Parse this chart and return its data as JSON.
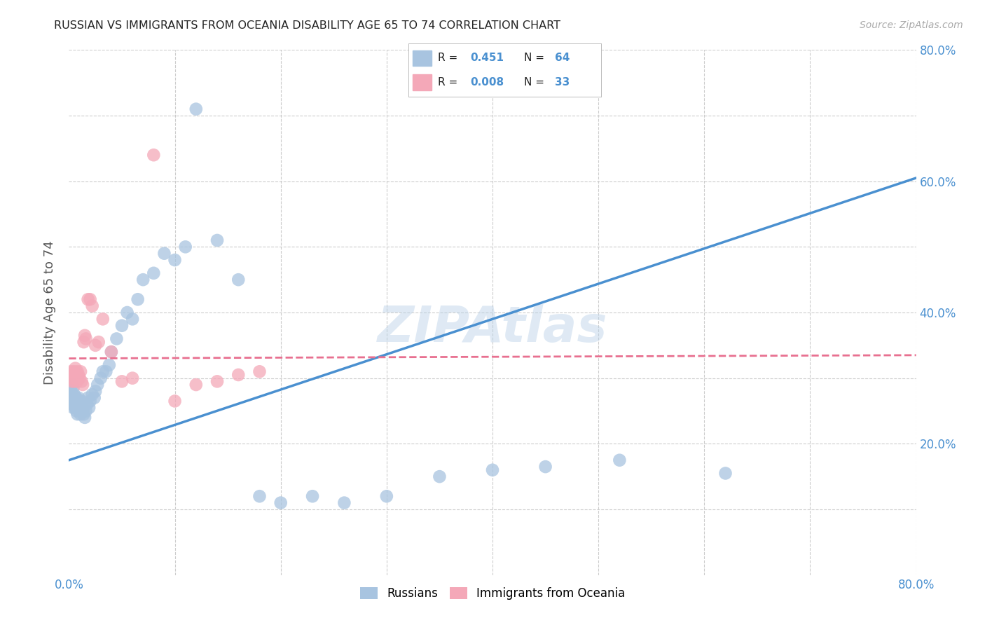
{
  "title": "RUSSIAN VS IMMIGRANTS FROM OCEANIA DISABILITY AGE 65 TO 74 CORRELATION CHART",
  "source": "Source: ZipAtlas.com",
  "ylabel": "Disability Age 65 to 74",
  "xlim": [
    0.0,
    0.8
  ],
  "ylim": [
    0.0,
    0.8
  ],
  "russian_R": 0.451,
  "russian_N": 64,
  "oceania_R": 0.008,
  "oceania_N": 33,
  "russian_color": "#a8c4e0",
  "oceania_color": "#f4a8b8",
  "russian_line_color": "#4a90d0",
  "oceania_line_color": "#e87090",
  "background_color": "#ffffff",
  "grid_color": "#cccccc",
  "russians_x": [
    0.001,
    0.002,
    0.002,
    0.003,
    0.003,
    0.003,
    0.004,
    0.004,
    0.004,
    0.005,
    0.005,
    0.006,
    0.006,
    0.007,
    0.007,
    0.008,
    0.008,
    0.009,
    0.009,
    0.01,
    0.01,
    0.011,
    0.012,
    0.012,
    0.013,
    0.014,
    0.015,
    0.016,
    0.017,
    0.018,
    0.019,
    0.02,
    0.022,
    0.024,
    0.025,
    0.027,
    0.03,
    0.032,
    0.035,
    0.038,
    0.04,
    0.045,
    0.05,
    0.055,
    0.06,
    0.065,
    0.07,
    0.08,
    0.09,
    0.1,
    0.11,
    0.12,
    0.14,
    0.16,
    0.18,
    0.2,
    0.23,
    0.26,
    0.3,
    0.35,
    0.4,
    0.45,
    0.52,
    0.62
  ],
  "russians_y": [
    0.27,
    0.265,
    0.28,
    0.26,
    0.275,
    0.29,
    0.255,
    0.27,
    0.285,
    0.26,
    0.275,
    0.255,
    0.265,
    0.25,
    0.27,
    0.245,
    0.26,
    0.255,
    0.27,
    0.25,
    0.265,
    0.245,
    0.255,
    0.265,
    0.25,
    0.245,
    0.24,
    0.25,
    0.26,
    0.27,
    0.255,
    0.265,
    0.275,
    0.27,
    0.28,
    0.29,
    0.3,
    0.31,
    0.31,
    0.32,
    0.34,
    0.36,
    0.38,
    0.4,
    0.39,
    0.42,
    0.45,
    0.46,
    0.49,
    0.48,
    0.5,
    0.71,
    0.51,
    0.45,
    0.12,
    0.11,
    0.12,
    0.11,
    0.12,
    0.15,
    0.16,
    0.165,
    0.175,
    0.155
  ],
  "oceania_x": [
    0.001,
    0.002,
    0.003,
    0.004,
    0.005,
    0.005,
    0.006,
    0.007,
    0.008,
    0.008,
    0.009,
    0.01,
    0.011,
    0.012,
    0.013,
    0.014,
    0.015,
    0.016,
    0.018,
    0.02,
    0.022,
    0.025,
    0.028,
    0.032,
    0.04,
    0.05,
    0.06,
    0.08,
    0.1,
    0.12,
    0.14,
    0.16,
    0.18
  ],
  "oceania_y": [
    0.3,
    0.31,
    0.295,
    0.305,
    0.295,
    0.31,
    0.315,
    0.3,
    0.295,
    0.31,
    0.305,
    0.3,
    0.31,
    0.295,
    0.29,
    0.355,
    0.365,
    0.36,
    0.42,
    0.42,
    0.41,
    0.35,
    0.355,
    0.39,
    0.34,
    0.295,
    0.3,
    0.64,
    0.265,
    0.29,
    0.295,
    0.305,
    0.31
  ],
  "russian_line_x0": 0.0,
  "russian_line_y0": 0.175,
  "russian_line_x1": 0.8,
  "russian_line_y1": 0.605,
  "oceania_line_x0": 0.0,
  "oceania_line_y0": 0.33,
  "oceania_line_x1": 0.8,
  "oceania_line_y1": 0.335
}
